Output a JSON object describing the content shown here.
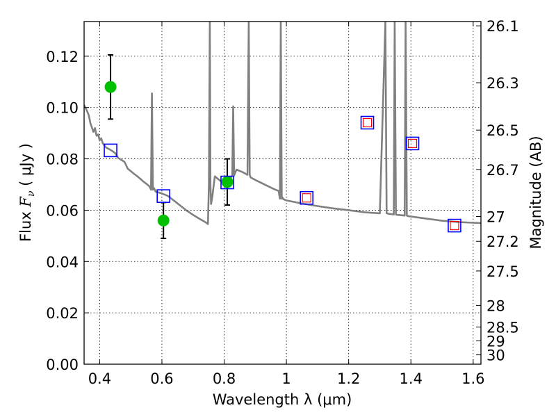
{
  "chart_data": {
    "type": "line",
    "title": "",
    "xlabel": "Wavelength  λ (μm)",
    "ylabel": "Flux  F_ν  ( μJy )",
    "ylabel_parts": {
      "pre": "Flux  ",
      "sym": "F",
      "sub": "ν",
      "post": "  ( μJy )"
    },
    "y2label": "Magnitude (AB)",
    "xlim": [
      0.35,
      1.625
    ],
    "ylim": [
      0.0,
      0.1335
    ],
    "grid": true,
    "x_ticks": [
      {
        "value": 0.4,
        "label": "0.4"
      },
      {
        "value": 0.6,
        "label": "0.6"
      },
      {
        "value": 0.8,
        "label": "0.8"
      },
      {
        "value": 1.0,
        "label": "1"
      },
      {
        "value": 1.2,
        "label": "1.2"
      },
      {
        "value": 1.4,
        "label": "1.4"
      },
      {
        "value": 1.6,
        "label": "1.6"
      }
    ],
    "y_ticks": [
      {
        "value": 0.0,
        "label": "0.00"
      },
      {
        "value": 0.02,
        "label": "0.02"
      },
      {
        "value": 0.04,
        "label": "0.04"
      },
      {
        "value": 0.06,
        "label": "0.06"
      },
      {
        "value": 0.08,
        "label": "0.08"
      },
      {
        "value": 0.1,
        "label": "0.10"
      },
      {
        "value": 0.12,
        "label": "0.12"
      }
    ],
    "y2_ticks": [
      {
        "value": 26.1,
        "label": "26.1"
      },
      {
        "value": 26.3,
        "label": "26.3"
      },
      {
        "value": 26.5,
        "label": "26.5"
      },
      {
        "value": 26.7,
        "label": "26.7"
      },
      {
        "value": 27.0,
        "label": "27"
      },
      {
        "value": 27.2,
        "label": "27.2"
      },
      {
        "value": 27.5,
        "label": "27.5"
      },
      {
        "value": 28.0,
        "label": "28"
      },
      {
        "value": 28.5,
        "label": "28.5"
      },
      {
        "value": 29.0,
        "label": "29"
      },
      {
        "value": 30.0,
        "label": "30"
      }
    ],
    "series": [
      {
        "name": "model-spectrum",
        "kind": "line",
        "color": "#808080",
        "x": [
          0.35,
          0.36,
          0.365,
          0.37,
          0.38,
          0.385,
          0.39,
          0.395,
          0.4,
          0.405,
          0.41,
          0.42,
          0.43,
          0.44,
          0.45,
          0.46,
          0.47,
          0.48,
          0.49,
          0.5,
          0.51,
          0.52,
          0.53,
          0.54,
          0.55,
          0.56,
          0.565,
          0.568,
          0.571,
          0.575,
          0.58,
          0.6,
          0.62,
          0.64,
          0.66,
          0.68,
          0.7,
          0.72,
          0.74,
          0.748,
          0.751,
          0.754,
          0.756,
          0.758,
          0.762,
          0.77,
          0.78,
          0.79,
          0.8,
          0.805,
          0.81,
          0.82,
          0.826,
          0.829,
          0.832,
          0.835,
          0.84,
          0.86,
          0.875,
          0.879,
          0.882,
          0.885,
          0.9,
          0.92,
          0.94,
          0.96,
          0.975,
          0.979,
          0.982,
          0.985,
          0.987,
          0.99,
          1.0,
          1.03,
          1.06,
          1.1,
          1.15,
          1.2,
          1.25,
          1.3,
          1.318,
          1.322,
          1.325,
          1.345,
          1.348,
          1.352,
          1.355,
          1.38,
          1.383,
          1.387,
          1.39,
          1.45,
          1.5,
          1.55,
          1.6,
          1.625
        ],
        "y": [
          0.101,
          0.0985,
          0.097,
          0.094,
          0.0905,
          0.092,
          0.089,
          0.0895,
          0.0872,
          0.088,
          0.0861,
          0.0845,
          0.0838,
          0.0831,
          0.0822,
          0.0803,
          0.0796,
          0.0788,
          0.0762,
          0.0752,
          0.0742,
          0.0733,
          0.0723,
          0.0712,
          0.0703,
          0.0693,
          0.068,
          0.1055,
          0.068,
          0.0685,
          0.0672,
          0.0665,
          0.0655,
          0.0636,
          0.0617,
          0.0598,
          0.0582,
          0.0567,
          0.0553,
          0.0546,
          0.07,
          0.1335,
          0.07,
          0.0624,
          0.0652,
          0.0732,
          0.0722,
          0.0712,
          0.0702,
          0.0712,
          0.0715,
          0.0725,
          0.0735,
          0.1005,
          0.0735,
          0.0745,
          0.0758,
          0.0748,
          0.0738,
          0.1335,
          0.0738,
          0.0728,
          0.0718,
          0.0706,
          0.0694,
          0.0682,
          0.0675,
          0.0645,
          0.1335,
          0.0645,
          0.065,
          0.0643,
          0.0638,
          0.0631,
          0.0624,
          0.0616,
          0.0607,
          0.06,
          0.0592,
          0.0588,
          0.1335,
          0.0588,
          0.0587,
          0.0583,
          0.1335,
          0.0583,
          0.0582,
          0.0579,
          0.1335,
          0.0579,
          0.0577,
          0.0567,
          0.0559,
          0.0554,
          0.0551,
          0.055
        ]
      },
      {
        "name": "observed-flux",
        "kind": "errorbar",
        "color": "#00c000",
        "x": [
          0.435,
          0.605,
          0.81
        ],
        "y": [
          0.108,
          0.056,
          0.071
        ],
        "yerr": [
          0.0125,
          0.007,
          0.009
        ]
      },
      {
        "name": "model-photometry",
        "kind": "squares",
        "color": "#0000ff",
        "x": [
          0.435,
          0.605,
          0.81,
          1.065,
          1.26,
          1.405,
          1.54
        ],
        "y": [
          0.0833,
          0.0655,
          0.0708,
          0.0648,
          0.0941,
          0.086,
          0.054
        ]
      },
      {
        "name": "model-photometry-inner",
        "kind": "squares-small",
        "color": "#ff0000",
        "x": [
          1.065,
          1.26,
          1.405,
          1.54
        ],
        "y": [
          0.0648,
          0.0941,
          0.086,
          0.054
        ]
      }
    ]
  }
}
